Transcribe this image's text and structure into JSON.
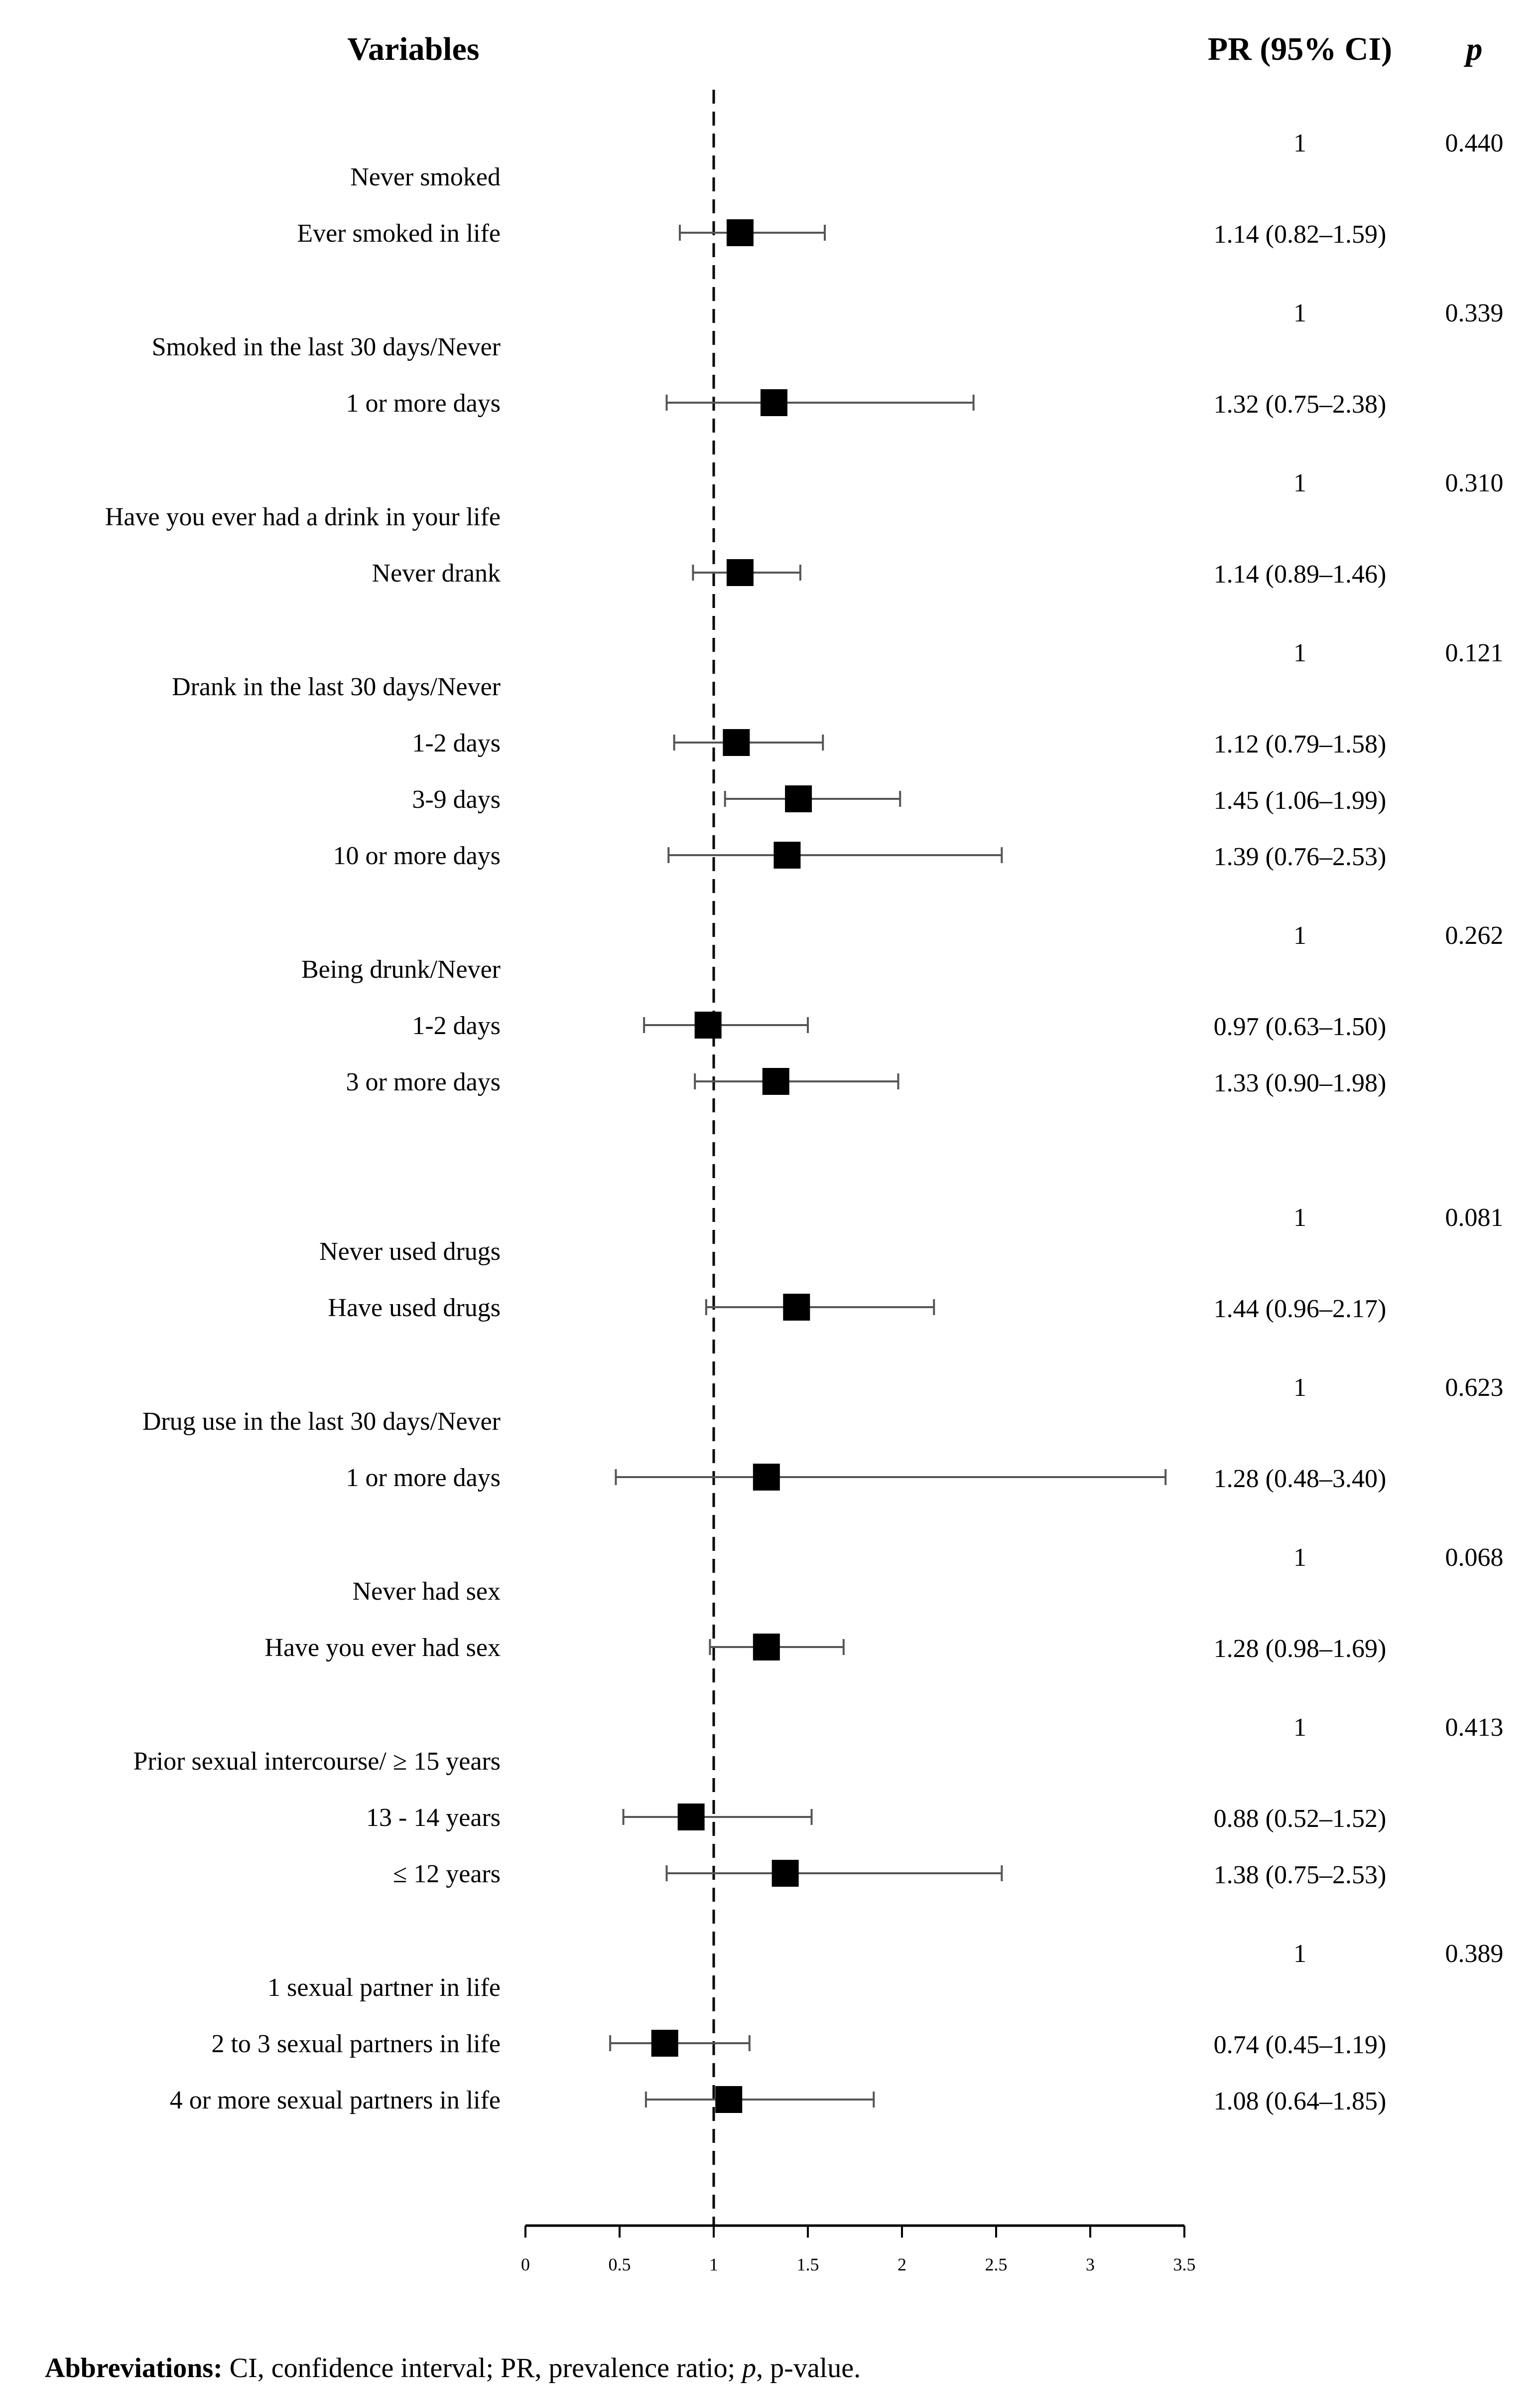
{
  "headers": {
    "variables": "Variables",
    "pr": "PR (95% CI)",
    "p": "p"
  },
  "chart_data": {
    "type": "forest",
    "title": "",
    "xlabel": "",
    "xlim": [
      0,
      3.5
    ],
    "xticks": [
      {
        "value": 0,
        "label": "0"
      },
      {
        "value": 0.5,
        "label": "0.5"
      },
      {
        "value": 1,
        "label": "1"
      },
      {
        "value": 1.5,
        "label": "1.5"
      },
      {
        "value": 2,
        "label": "2"
      },
      {
        "value": 2.5,
        "label": "2.5"
      },
      {
        "value": 3,
        "label": "3"
      },
      {
        "value": 3.5,
        "label": "3.5"
      }
    ],
    "reference_line": 1,
    "groups": [
      {
        "p": "0.440",
        "rows": [
          {
            "label": "Never smoked",
            "pr": "1",
            "est": null,
            "lo": null,
            "hi": null
          },
          {
            "label": "Ever smoked in life",
            "pr": "1.14 (0.82–1.59)",
            "est": 1.14,
            "lo": 0.82,
            "hi": 1.59
          }
        ]
      },
      {
        "p": "0.339",
        "rows": [
          {
            "label": "Smoked in the last 30 days/Never",
            "pr": "1",
            "est": null,
            "lo": null,
            "hi": null
          },
          {
            "label": "1 or more days",
            "pr": "1.32 (0.75–2.38)",
            "est": 1.32,
            "lo": 0.75,
            "hi": 2.38
          }
        ]
      },
      {
        "p": "0.310",
        "rows": [
          {
            "label": "Have you ever had a drink in your life",
            "pr": "1",
            "est": null,
            "lo": null,
            "hi": null
          },
          {
            "label": "Never drank",
            "pr": "1.14 (0.89–1.46)",
            "est": 1.14,
            "lo": 0.89,
            "hi": 1.46
          }
        ]
      },
      {
        "p": "0.121",
        "rows": [
          {
            "label": "Drank in the last 30 days/Never",
            "pr": "1",
            "est": null,
            "lo": null,
            "hi": null
          },
          {
            "label": "1-2 days",
            "pr": "1.12 (0.79–1.58)",
            "est": 1.12,
            "lo": 0.79,
            "hi": 1.58
          },
          {
            "label": "3-9 days",
            "pr": "1.45 (1.06–1.99)",
            "est": 1.45,
            "lo": 1.06,
            "hi": 1.99
          },
          {
            "label": "10 or more days",
            "pr": "1.39 (0.76–2.53)",
            "est": 1.39,
            "lo": 0.76,
            "hi": 2.53
          }
        ]
      },
      {
        "p": "0.262",
        "rows": [
          {
            "label": "Being drunk/Never",
            "pr": "1",
            "est": null,
            "lo": null,
            "hi": null
          },
          {
            "label": "1-2 days",
            "pr": "0.97 (0.63–1.50)",
            "est": 0.97,
            "lo": 0.63,
            "hi": 1.5
          },
          {
            "label": "3 or more days",
            "pr": "1.33 (0.90–1.98)",
            "est": 1.33,
            "lo": 0.9,
            "hi": 1.98
          }
        ]
      },
      {
        "p": "0.081",
        "rows": [
          {
            "label": "Never used drugs",
            "pr": "1",
            "est": null,
            "lo": null,
            "hi": null
          },
          {
            "label": "Have used drugs",
            "pr": "1.44 (0.96–2.17)",
            "est": 1.44,
            "lo": 0.96,
            "hi": 2.17
          }
        ]
      },
      {
        "p": "0.623",
        "rows": [
          {
            "label": "Drug use in the last 30 days/Never",
            "pr": "1",
            "est": null,
            "lo": null,
            "hi": null
          },
          {
            "label": "1 or more days",
            "pr": "1.28 (0.48–3.40)",
            "est": 1.28,
            "lo": 0.48,
            "hi": 3.4
          }
        ]
      },
      {
        "p": "0.068",
        "rows": [
          {
            "label": "Never had sex",
            "pr": "1",
            "est": null,
            "lo": null,
            "hi": null
          },
          {
            "label": "Have you ever had sex",
            "pr": "1.28 (0.98–1.69)",
            "est": 1.28,
            "lo": 0.98,
            "hi": 1.69
          }
        ]
      },
      {
        "p": "0.413",
        "rows": [
          {
            "label": "Prior sexual intercourse/ ≥ 15 years",
            "pr": "1",
            "est": null,
            "lo": null,
            "hi": null
          },
          {
            "label": "13 - 14 years",
            "pr": "0.88 (0.52–1.52)",
            "est": 0.88,
            "lo": 0.52,
            "hi": 1.52
          },
          {
            "label": "≤ 12 years",
            "pr": "1.38 (0.75–2.53)",
            "est": 1.38,
            "lo": 0.75,
            "hi": 2.53
          }
        ]
      },
      {
        "p": "0.389",
        "rows": [
          {
            "label": "1 sexual partner in life",
            "pr": "1",
            "est": null,
            "lo": null,
            "hi": null
          },
          {
            "label": "2 to 3 sexual partners in life",
            "pr": "0.74 (0.45–1.19)",
            "est": 0.74,
            "lo": 0.45,
            "hi": 1.19
          },
          {
            "label": "4 or more sexual partners in life",
            "pr": "1.08 (0.64–1.85)",
            "est": 1.08,
            "lo": 0.64,
            "hi": 1.85
          }
        ]
      }
    ]
  },
  "footnote": {
    "bold": "Abbreviations:",
    "text_a": " CI, confidence interval; PR, prevalence ratio; ",
    "p_italic": "p",
    "text_b": ", p-value."
  }
}
